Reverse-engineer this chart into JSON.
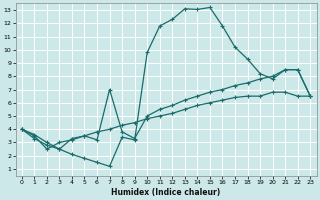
{
  "xlabel": "Humidex (Indice chaleur)",
  "bg_color": "#cce8e8",
  "grid_color": "#ffffff",
  "line_color": "#1a6b6b",
  "xlim": [
    -0.5,
    23.5
  ],
  "ylim": [
    0.5,
    13.5
  ],
  "xticks": [
    0,
    1,
    2,
    3,
    4,
    5,
    6,
    7,
    8,
    9,
    10,
    11,
    12,
    13,
    14,
    15,
    16,
    17,
    18,
    19,
    20,
    21,
    22,
    23
  ],
  "yticks": [
    1,
    2,
    3,
    4,
    5,
    6,
    7,
    8,
    9,
    10,
    11,
    12,
    13
  ],
  "line1_x": [
    0,
    1,
    2,
    3,
    4,
    5,
    6,
    7,
    8,
    9,
    10,
    11,
    12,
    13,
    14,
    15,
    16,
    17,
    18,
    19,
    20,
    21,
    22,
    23
  ],
  "line1_y": [
    4.0,
    3.3,
    2.8,
    2.5,
    2.1,
    1.8,
    1.5,
    1.2,
    3.4,
    3.2,
    9.8,
    11.8,
    12.3,
    13.1,
    13.05,
    13.2,
    11.8,
    10.2,
    9.3,
    8.2,
    7.8,
    8.5,
    8.5,
    6.5
  ],
  "line2_x": [
    0,
    1,
    2,
    3,
    4,
    5,
    6,
    7,
    8,
    9,
    10,
    11,
    12,
    13,
    14,
    15,
    16,
    17,
    18,
    19,
    20,
    21,
    22,
    23
  ],
  "line2_y": [
    4.0,
    3.6,
    3.0,
    2.5,
    3.3,
    3.5,
    3.2,
    7.0,
    3.8,
    3.3,
    5.0,
    5.5,
    5.8,
    6.2,
    6.5,
    6.8,
    7.0,
    7.3,
    7.5,
    7.8,
    8.0,
    8.5,
    8.5,
    6.5
  ],
  "line3_x": [
    0,
    1,
    2,
    3,
    4,
    5,
    6,
    7,
    8,
    9,
    10,
    11,
    12,
    13,
    14,
    15,
    16,
    17,
    18,
    19,
    20,
    21,
    22,
    23
  ],
  "line3_y": [
    4.0,
    3.5,
    2.5,
    3.0,
    3.2,
    3.5,
    3.8,
    4.0,
    4.3,
    4.5,
    4.8,
    5.0,
    5.2,
    5.5,
    5.8,
    6.0,
    6.2,
    6.4,
    6.5,
    6.5,
    6.8,
    6.8,
    6.5,
    6.5
  ]
}
